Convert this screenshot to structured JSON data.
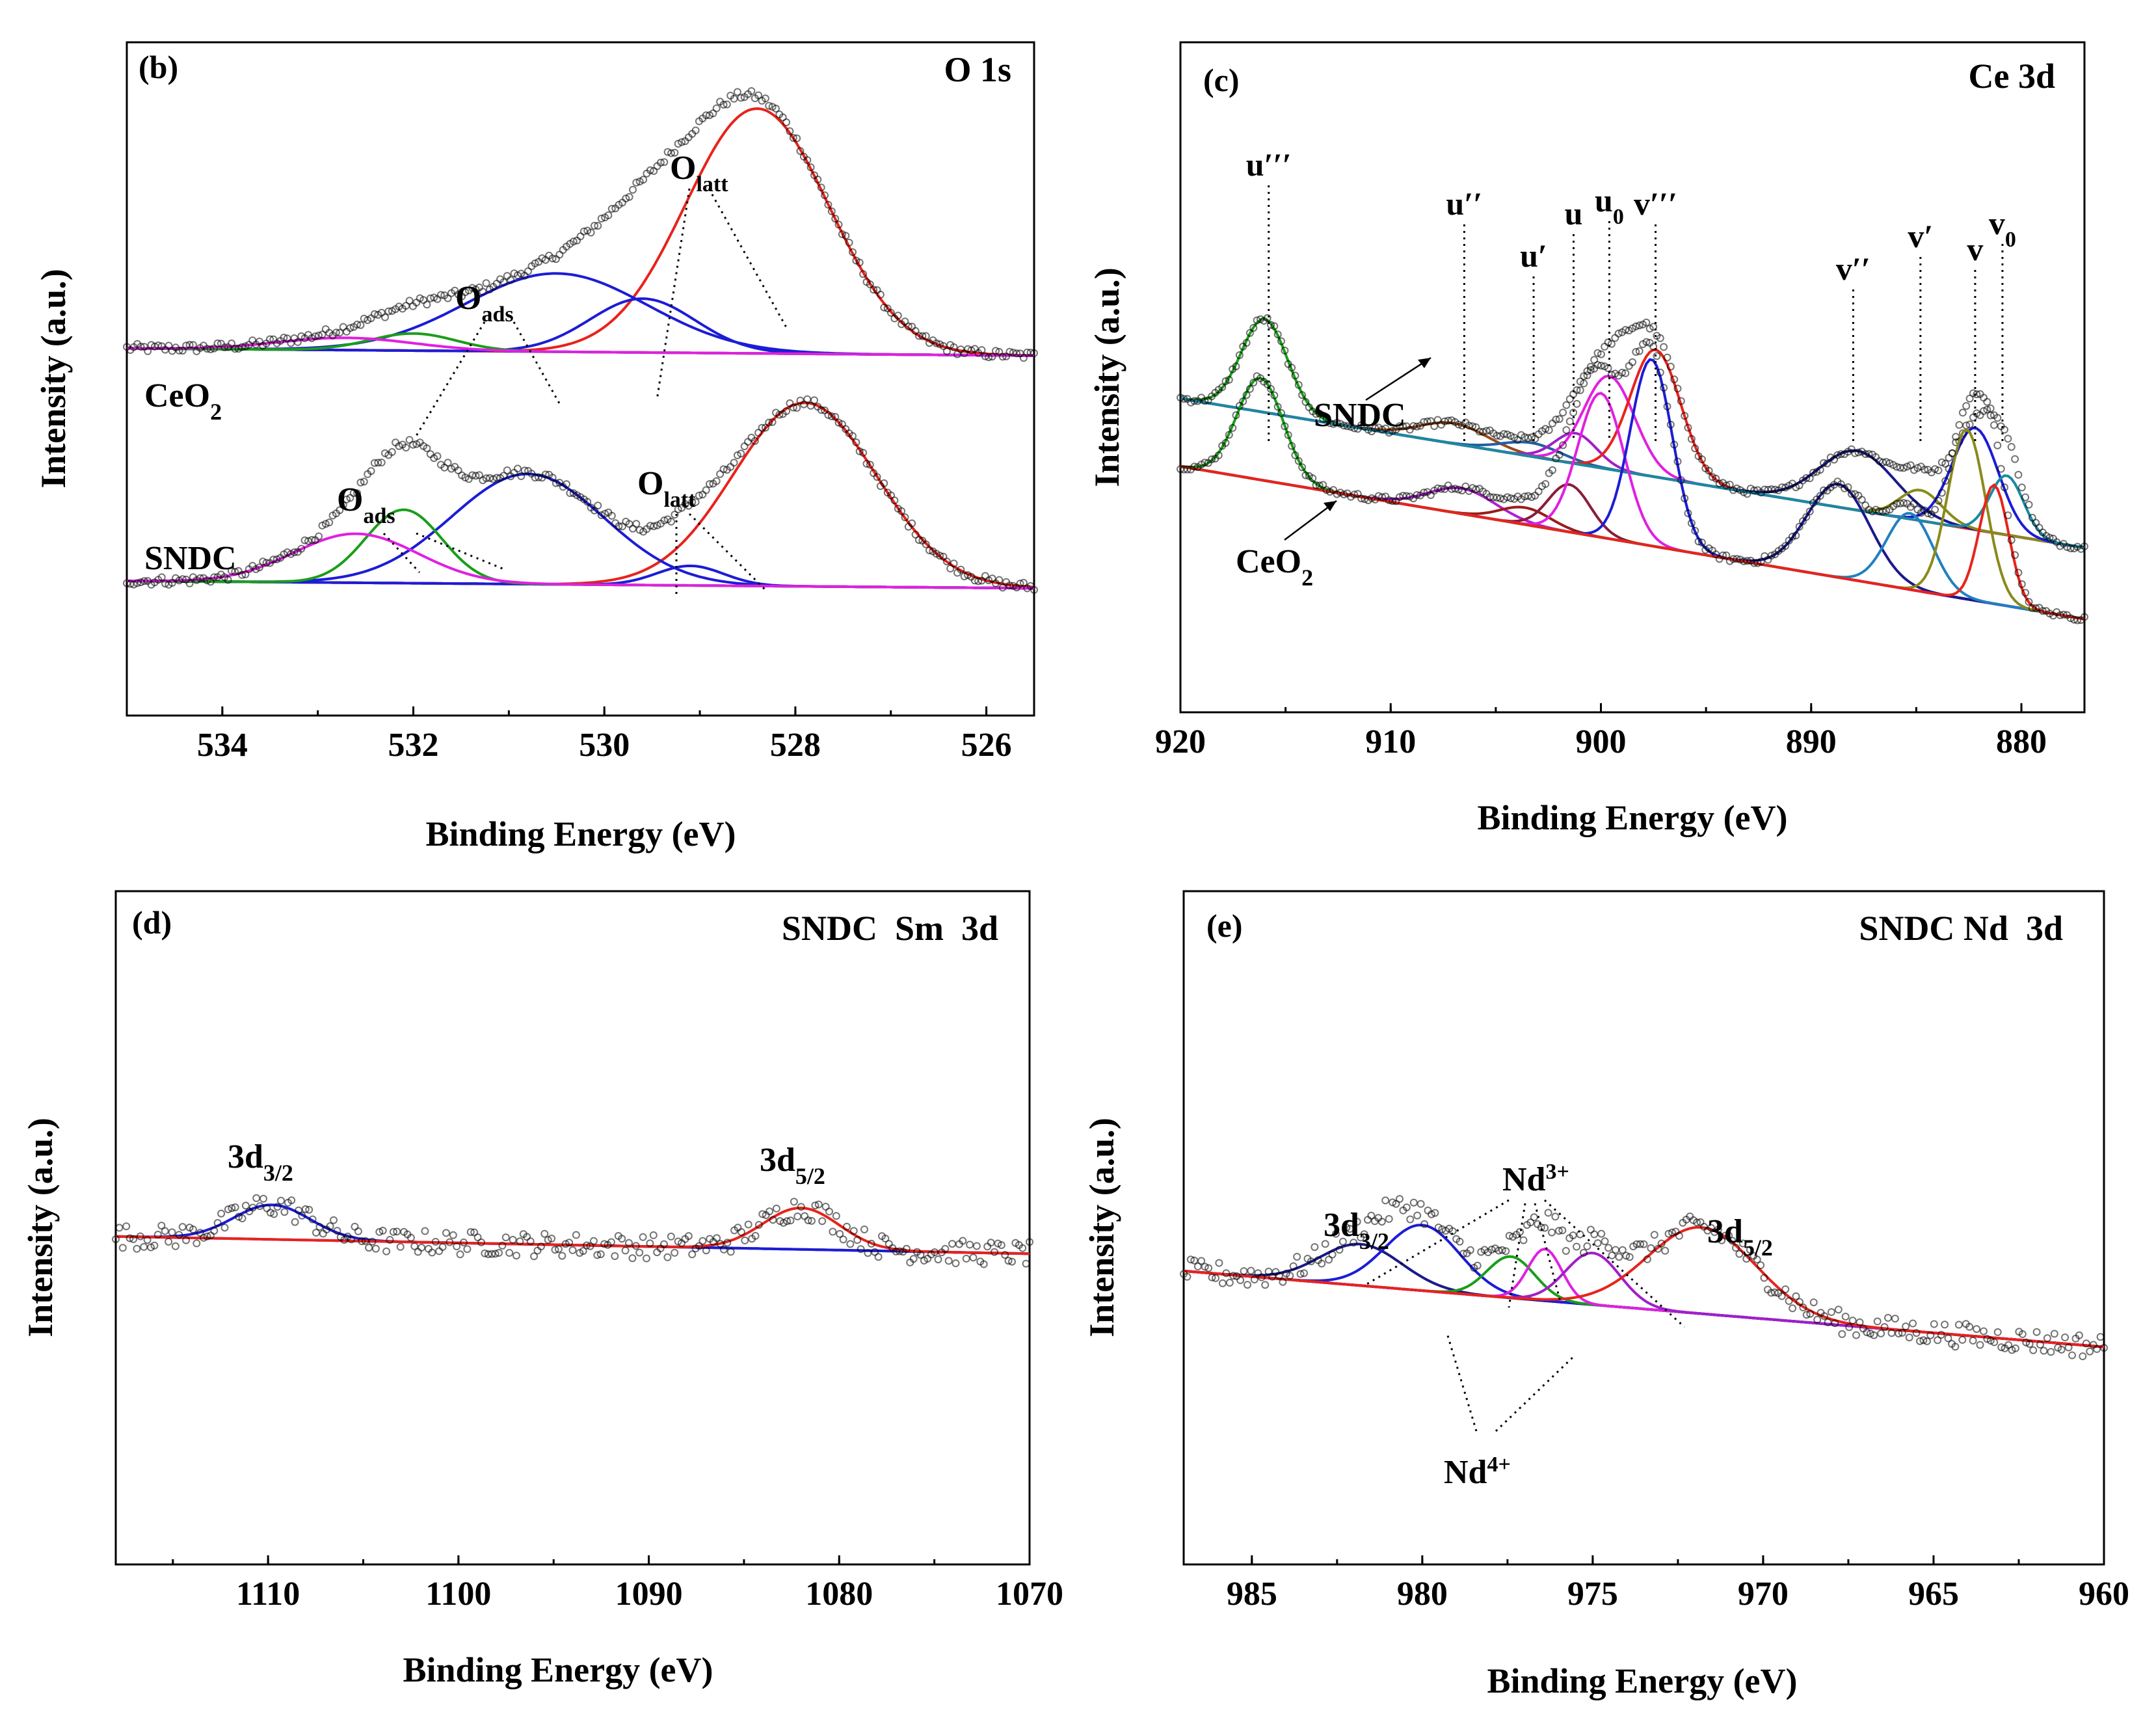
{
  "chart_data": [
    {
      "type": "line",
      "id": "b",
      "panel_label": "(b)",
      "title": "O 1s",
      "xlabel": "Binding Energy (eV)",
      "ylabel": "Intensity (a.u.)",
      "xlim": [
        535,
        525.5
      ],
      "xticks": [
        534,
        532,
        530,
        528,
        526
      ],
      "ylim": [
        -0.55,
        2.2
      ],
      "spectra": [
        {
          "name": "CeO2",
          "baseline": [
            0.95,
            0.92
          ],
          "sum_color": "#000000",
          "peaks": [
            {
              "center": 528.4,
              "height": 1.0,
              "width": 0.75,
              "color": "#e8231c"
            },
            {
              "center": 529.6,
              "height": 0.22,
              "width": 0.55,
              "color": "#1c1cd6"
            },
            {
              "center": 530.5,
              "height": 0.32,
              "width": 0.95,
              "color": "#1c1cd6"
            },
            {
              "center": 532.0,
              "height": 0.07,
              "width": 0.45,
              "color": "#1a9e1a"
            },
            {
              "center": 532.7,
              "height": 0.05,
              "width": 0.7,
              "color": "#e020e0"
            }
          ]
        },
        {
          "name": "SNDC",
          "baseline": [
            0.0,
            -0.03
          ],
          "sum_color": "#000000",
          "peaks": [
            {
              "center": 527.9,
              "height": 0.75,
              "width": 0.75,
              "color": "#e8231c"
            },
            {
              "center": 529.1,
              "height": 0.08,
              "width": 0.35,
              "color": "#1c1cd6"
            },
            {
              "center": 530.8,
              "height": 0.45,
              "width": 0.8,
              "color": "#1c1cd6"
            },
            {
              "center": 532.1,
              "height": 0.3,
              "width": 0.4,
              "color": "#1a9e1a"
            },
            {
              "center": 532.6,
              "height": 0.2,
              "width": 0.65,
              "color": "#e020e0"
            }
          ]
        }
      ],
      "annotations": [
        "CeO2",
        "SNDC",
        "O_ads",
        "O_latt"
      ]
    },
    {
      "type": "line",
      "id": "c",
      "panel_label": "(c)",
      "title": "Ce 3d",
      "xlabel": "Binding Energy (eV)",
      "ylabel": "Intensity (a.u.)",
      "xlim": [
        920,
        877
      ],
      "xticks": [
        920,
        910,
        900,
        890,
        880
      ],
      "ylim": [
        -0.55,
        3.4
      ],
      "spectra": [
        {
          "name": "SNDC",
          "baseline": [
            1.3,
            0.42
          ],
          "peaks": [
            {
              "center": 916.0,
              "height": 0.55,
              "width": 1.1,
              "color": "#1a9e1a"
            },
            {
              "center": 907.0,
              "height": 0.12,
              "width": 1.6,
              "color": "#9a4a1c"
            },
            {
              "center": 903.3,
              "height": 0.08,
              "width": 1.4,
              "color": "#2060a0"
            },
            {
              "center": 901.2,
              "height": 0.18,
              "width": 1.0,
              "color": "#a020c8"
            },
            {
              "center": 899.6,
              "height": 0.55,
              "width": 1.2,
              "color": "#e020e0"
            },
            {
              "center": 897.4,
              "height": 0.75,
              "width": 1.2,
              "color": "#e8231c"
            },
            {
              "center": 887.8,
              "height": 0.35,
              "width": 1.8,
              "color": "#1a1a8a"
            },
            {
              "center": 884.8,
              "height": 0.18,
              "width": 1.0,
              "color": "#8a8a1a"
            },
            {
              "center": 882.2,
              "height": 0.6,
              "width": 1.1,
              "color": "#1c1cd6"
            },
            {
              "center": 880.7,
              "height": 0.35,
              "width": 0.8,
              "color": "#1a8aa0"
            }
          ]
        },
        {
          "name": "CeO2",
          "baseline": [
            0.9,
            0.0
          ],
          "peaks": [
            {
              "center": 916.2,
              "height": 0.6,
              "width": 1.1,
              "color": "#1a9e1a"
            },
            {
              "center": 906.6,
              "height": 0.15,
              "width": 1.6,
              "color": "#b020d0"
            },
            {
              "center": 903.6,
              "height": 0.1,
              "width": 1.2,
              "color": "#9a1c1c"
            },
            {
              "center": 901.5,
              "height": 0.28,
              "width": 1.0,
              "color": "#8a1c3a"
            },
            {
              "center": 900.0,
              "height": 0.85,
              "width": 1.1,
              "color": "#e020e0"
            },
            {
              "center": 897.6,
              "height": 1.1,
              "width": 1.0,
              "color": "#1c1cd6"
            },
            {
              "center": 888.7,
              "height": 0.55,
              "width": 1.5,
              "color": "#1a1a8a"
            },
            {
              "center": 885.3,
              "height": 0.45,
              "width": 1.1,
              "color": "#2080c0"
            },
            {
              "center": 882.6,
              "height": 1.0,
              "width": 0.9,
              "color": "#8a8a1a"
            },
            {
              "center": 881.3,
              "height": 0.7,
              "width": 0.7,
              "color": "#e8231c"
            }
          ]
        }
      ],
      "peak_labels": [
        {
          "text": "u'''",
          "x": 915.8
        },
        {
          "text": "u''",
          "x": 906.5
        },
        {
          "text": "u'",
          "x": 903.2
        },
        {
          "text": "u",
          "x": 901.3
        },
        {
          "text": "u0",
          "x": 899.6
        },
        {
          "text": "v'''",
          "x": 897.4
        },
        {
          "text": "v''",
          "x": 888.0
        },
        {
          "text": "v'",
          "x": 884.8
        },
        {
          "text": "v",
          "x": 882.2
        },
        {
          "text": "v0",
          "x": 880.9
        }
      ],
      "annotations": [
        "SNDC",
        "CeO2"
      ]
    },
    {
      "type": "line",
      "id": "d",
      "panel_label": "(d)",
      "title": "SNDC  Sm  3d",
      "xlabel": "Binding Energy (eV)",
      "ylabel": "Intensity (a.u.)",
      "xlim": [
        1118,
        1070
      ],
      "xticks": [
        1110,
        1100,
        1090,
        1080,
        1070
      ],
      "ylim": [
        -0.95,
        1.0
      ],
      "spectra": [
        {
          "name": "SNDC",
          "baseline": [
            0.0,
            -0.05
          ],
          "peaks": [
            {
              "center": 1109.8,
              "height": 0.1,
              "width": 2.0,
              "color": "#1c1cd6"
            },
            {
              "center": 1082.0,
              "height": 0.12,
              "width": 2.0,
              "color": "#e8231c"
            }
          ]
        }
      ],
      "peak_labels": [
        {
          "text": "3d3/2",
          "x": 1110.0
        },
        {
          "text": "3d5/2",
          "x": 1082.0
        }
      ]
    },
    {
      "type": "line",
      "id": "e",
      "panel_label": "(e)",
      "title": "SNDC Nd  3d",
      "xlabel": "Binding Energy (eV)",
      "ylabel": "Intensity (a.u.)",
      "xlim": [
        987,
        960
      ],
      "xticks": [
        985,
        980,
        975,
        970,
        965,
        960
      ],
      "ylim": [
        -0.85,
        1.1
      ],
      "spectra": [
        {
          "name": "SNDC",
          "baseline": [
            0.0,
            -0.22
          ],
          "peaks": [
            {
              "center": 981.8,
              "height": 0.12,
              "width": 1.2,
              "color": "#1a1a8a"
            },
            {
              "center": 980.0,
              "height": 0.19,
              "width": 1.1,
              "color": "#1c1cd6"
            },
            {
              "center": 977.4,
              "height": 0.12,
              "width": 0.7,
              "color": "#1a9e1a"
            },
            {
              "center": 976.4,
              "height": 0.15,
              "width": 0.5,
              "color": "#e020e0"
            },
            {
              "center": 975.0,
              "height": 0.15,
              "width": 0.8,
              "color": "#a020c8"
            },
            {
              "center": 971.8,
              "height": 0.25,
              "width": 1.6,
              "color": "#e8231c"
            }
          ]
        }
      ],
      "peak_labels": [
        {
          "text": "3d3/2",
          "x": 981.5
        },
        {
          "text": "3d5/2",
          "x": 971.5
        },
        {
          "text": "Nd3+",
          "x": 977.5
        },
        {
          "text": "Nd4+",
          "x": 978.5
        }
      ]
    }
  ]
}
